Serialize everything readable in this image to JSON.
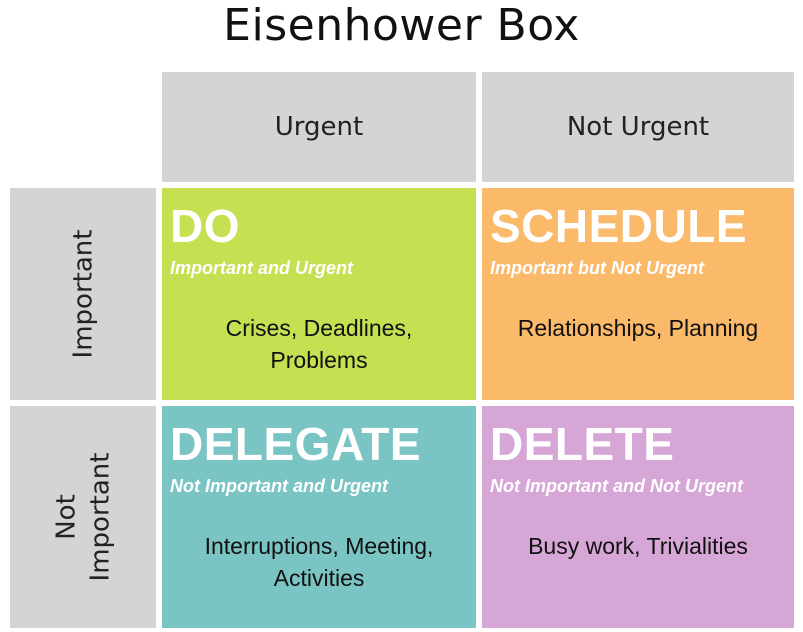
{
  "title": "Eisenhower Box",
  "columns": [
    "Urgent",
    "Not Urgent"
  ],
  "rows": [
    "Important",
    "Not Important"
  ],
  "row2_lines": [
    "Not",
    "Important"
  ],
  "quadrants": {
    "do": {
      "name": "DO",
      "subtitle": "Important and Urgent",
      "body": "Crises, Deadlines, Problems",
      "color": "#c5e050"
    },
    "schedule": {
      "name": "SCHEDULE",
      "subtitle": "Important but Not Urgent",
      "body": "Relationships, Planning",
      "color": "#fbb96a"
    },
    "delegate": {
      "name": "DELEGATE",
      "subtitle": "Not Important and Urgent",
      "body": "Interruptions, Meeting, Activities",
      "color": "#7ac4c4"
    },
    "delete": {
      "name": "DELETE",
      "subtitle": "Not Important and Not Urgent",
      "body": "Busy work, Trivialities",
      "color": "#d6a7d6"
    }
  }
}
